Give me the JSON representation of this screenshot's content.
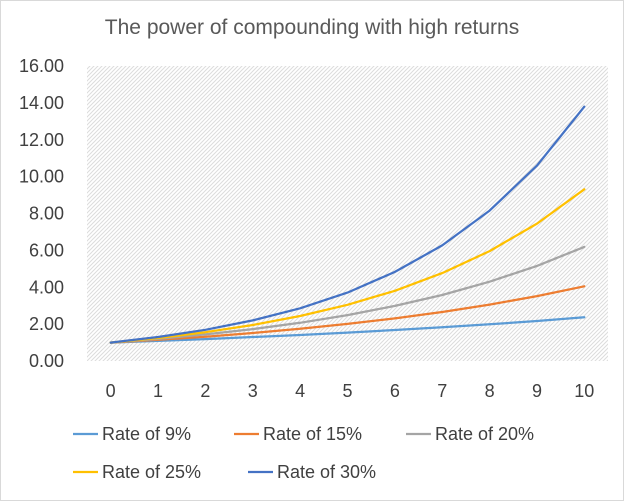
{
  "chart_data": {
    "type": "line",
    "title": "The power of compounding with high returns",
    "xlabel": "",
    "ylabel": "",
    "x": [
      0,
      1,
      2,
      3,
      4,
      5,
      6,
      7,
      8,
      9,
      10
    ],
    "x_tick_labels": [
      "0",
      "1",
      "2",
      "3",
      "4",
      "5",
      "6",
      "7",
      "8",
      "9",
      "10"
    ],
    "y_tick_labels": [
      "0.00",
      "2.00",
      "4.00",
      "6.00",
      "8.00",
      "10.00",
      "12.00",
      "14.00",
      "16.00"
    ],
    "ylim": [
      0,
      16
    ],
    "grid": false,
    "plot_background": "hatched",
    "legend_position": "bottom",
    "series": [
      {
        "name": "Rate of 9%",
        "color": "#5b9bd5",
        "values": [
          1.0,
          1.09,
          1.19,
          1.3,
          1.41,
          1.54,
          1.68,
          1.83,
          1.99,
          2.17,
          2.37
        ]
      },
      {
        "name": "Rate of 15%",
        "color": "#ed7d31",
        "values": [
          1.0,
          1.15,
          1.32,
          1.52,
          1.75,
          2.01,
          2.31,
          2.66,
          3.06,
          3.52,
          4.05
        ]
      },
      {
        "name": "Rate of 20%",
        "color": "#a5a5a5",
        "values": [
          1.0,
          1.2,
          1.44,
          1.73,
          2.07,
          2.49,
          2.99,
          3.58,
          4.3,
          5.16,
          6.19
        ]
      },
      {
        "name": "Rate of 25%",
        "color": "#ffc000",
        "values": [
          1.0,
          1.25,
          1.56,
          1.95,
          2.44,
          3.05,
          3.81,
          4.77,
          5.96,
          7.45,
          9.31
        ]
      },
      {
        "name": "Rate of 30%",
        "color": "#4472c4",
        "values": [
          1.0,
          1.3,
          1.69,
          2.2,
          2.86,
          3.71,
          4.83,
          6.27,
          8.16,
          10.6,
          13.79
        ]
      }
    ]
  }
}
